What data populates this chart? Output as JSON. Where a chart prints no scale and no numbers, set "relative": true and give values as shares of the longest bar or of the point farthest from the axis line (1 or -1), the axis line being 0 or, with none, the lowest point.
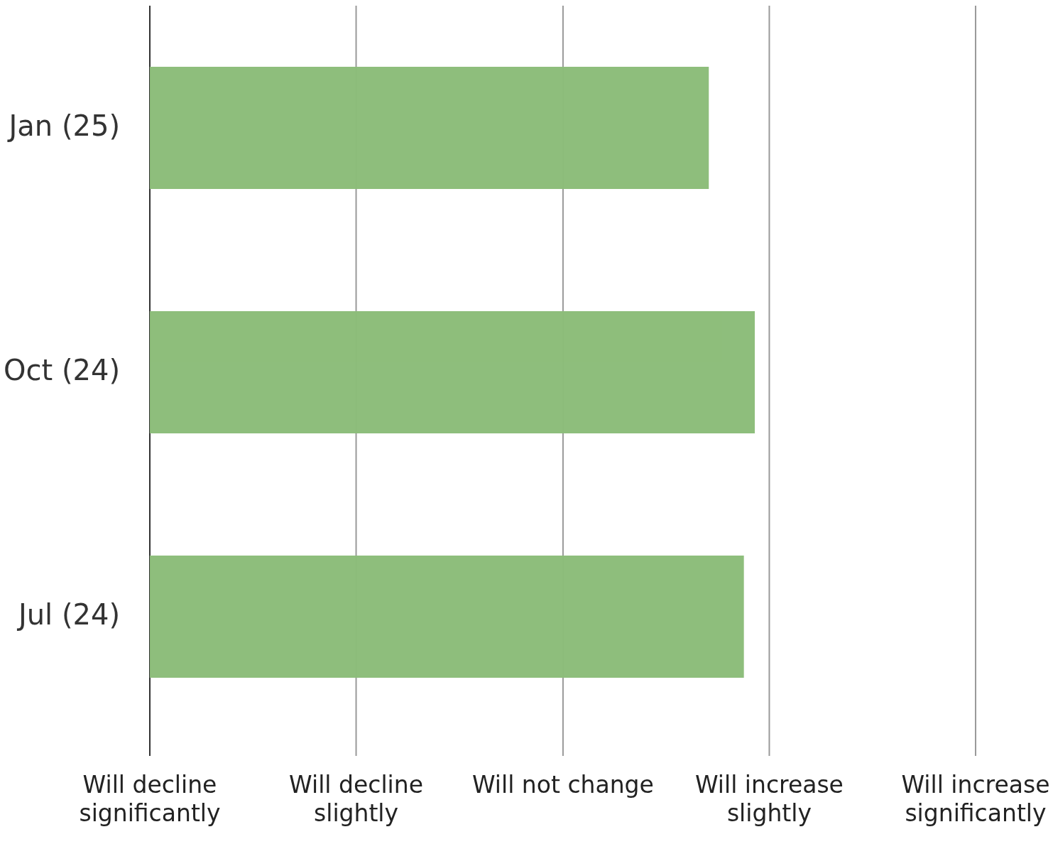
{
  "chart_data": {
    "type": "bar",
    "orientation": "horizontal",
    "relative": true,
    "categories": [
      "Jan (25)",
      "Oct (24)",
      "Jul (24)"
    ],
    "values": [
      0.924,
      1,
      0.982
    ],
    "color": "#8cbd79",
    "annotations": [
      "Will decline significantly"
    ],
    "ref_lines": [
      {
        "axis": "x",
        "value": 0.341,
        "label": "Will decline slightly",
        "color": "#999999"
      },
      {
        "axis": "x",
        "value": 0.683,
        "label": "Will not change",
        "color": "#999999"
      },
      {
        "axis": "x",
        "value": 1.024,
        "label": "Will increase slightly",
        "color": "#999999"
      },
      {
        "axis": "x",
        "value": 1.365,
        "label": "Will increase significantly",
        "color": "#999999"
      }
    ]
  }
}
